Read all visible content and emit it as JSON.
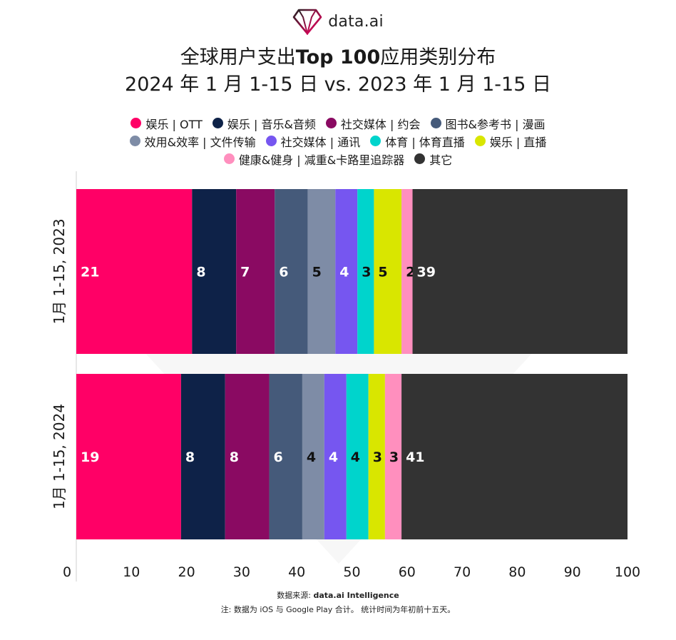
{
  "logo": {
    "text": "data.ai",
    "icon": "diamond-logo-icon"
  },
  "title": {
    "line1_prefix": "全球用户支出",
    "line1_bold": "Top 100",
    "line1_suffix": "应用类别分布",
    "line2": "2024 年 1 月 1-15 日 vs. 2023 年 1 月 1-15 日"
  },
  "footer": {
    "source_prefix": "数据来源: ",
    "source_bold": "data.ai Intelligence",
    "note": "注: 数据为 iOS 与 Google Play 合计。 统计时间为年初前十五天。"
  },
  "chart_data": {
    "type": "bar",
    "orientation": "horizontal",
    "stacked": true,
    "categories": [
      "1月 1-15, 2023",
      "1月 1-15, 2024"
    ],
    "xlim": [
      0,
      100
    ],
    "xticks": [
      0,
      10,
      20,
      30,
      40,
      50,
      60,
      70,
      80,
      90,
      100
    ],
    "grid": false,
    "legend_position": "top",
    "series": [
      {
        "name": "娱乐 | OTT",
        "color": "#ff0066",
        "values": [
          21,
          19
        ],
        "label_color": "#ffffff"
      },
      {
        "name": "娱乐 | 音乐&音频",
        "color": "#0e2248",
        "values": [
          8,
          8
        ],
        "label_color": "#ffffff"
      },
      {
        "name": "社交媒体 | 约会",
        "color": "#8a0a62",
        "values": [
          7,
          8
        ],
        "label_color": "#ffffff"
      },
      {
        "name": "图书&参考书 | 漫画",
        "color": "#455a7a",
        "values": [
          6,
          6
        ],
        "label_color": "#ffffff"
      },
      {
        "name": "效用&效率 | 文件传输",
        "color": "#7e8ca6",
        "values": [
          5,
          4
        ],
        "label_color": "#111111"
      },
      {
        "name": "社交媒体 | 通讯",
        "color": "#7656f0",
        "values": [
          4,
          4
        ],
        "label_color": "#ffffff"
      },
      {
        "name": "体育 | 体育直播",
        "color": "#00d4cc",
        "values": [
          3,
          4
        ],
        "label_color": "#111111"
      },
      {
        "name": "娱乐 | 直播",
        "color": "#d9e600",
        "values": [
          5,
          3
        ],
        "label_color": "#111111"
      },
      {
        "name": "健康&健身 | 减重&卡路里追踪器",
        "color": "#ff8fbe",
        "values": [
          2,
          3
        ],
        "label_color": "#111111"
      },
      {
        "name": "其它",
        "color": "#333333",
        "values": [
          39,
          41
        ],
        "label_color": "#ffffff"
      }
    ]
  }
}
